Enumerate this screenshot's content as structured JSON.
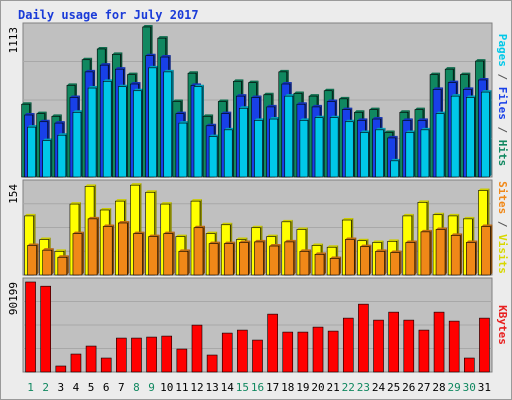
{
  "chart_data": {
    "type": "bar",
    "title": "Daily usage for July 2017",
    "categories": [
      "1",
      "2",
      "3",
      "4",
      "5",
      "6",
      "7",
      "8",
      "9",
      "10",
      "11",
      "12",
      "13",
      "14",
      "15",
      "16",
      "17",
      "18",
      "19",
      "20",
      "21",
      "22",
      "23",
      "24",
      "25",
      "26",
      "27",
      "28",
      "29",
      "30",
      "31"
    ],
    "weekend_categories": [
      "1",
      "2",
      "8",
      "9",
      "15",
      "16",
      "22",
      "23",
      "29",
      "30"
    ],
    "panels": [
      {
        "id": "hits-files-pages",
        "max_label": "1113",
        "ylim": [
          0,
          1113
        ],
        "axis_labels": [
          {
            "text": "Pages",
            "color": "#00c8e8"
          },
          {
            "text": " / ",
            "color": "#555555"
          },
          {
            "text": "Files",
            "color": "#1840e8"
          },
          {
            "text": " / ",
            "color": "#555555"
          },
          {
            "text": "Hits",
            "color": "#108860"
          }
        ],
        "series": [
          {
            "name": "Hits",
            "color": "#108860",
            "values": [
              540,
              470,
              450,
              680,
              870,
              950,
              910,
              760,
              1113,
              1030,
              560,
              770,
              450,
              560,
              710,
              700,
              610,
              780,
              620,
              600,
              640,
              580,
              480,
              500,
              330,
              480,
              500,
              760,
              800,
              760,
              860
            ]
          },
          {
            "name": "Files",
            "color": "#1840e8",
            "values": [
              460,
              410,
              400,
              590,
              780,
              830,
              800,
              690,
              900,
              890,
              470,
              680,
              380,
              470,
              600,
              590,
              520,
              690,
              540,
              520,
              560,
              500,
              420,
              430,
              290,
              420,
              420,
              650,
              700,
              650,
              720
            ]
          },
          {
            "name": "Pages",
            "color": "#00c8e8",
            "values": [
              370,
              270,
              310,
              480,
              660,
              710,
              670,
              640,
              810,
              780,
              400,
              670,
              300,
              350,
              510,
              420,
              430,
              600,
              420,
              440,
              440,
              410,
              330,
              350,
              120,
              330,
              350,
              470,
              600,
              590,
              630
            ]
          }
        ]
      },
      {
        "id": "visits-sites",
        "max_label": "154",
        "ylim": [
          0,
          154
        ],
        "axis_labels": [
          {
            "text": "Sites",
            "color": "#f08818"
          },
          {
            "text": " / ",
            "color": "#555555"
          },
          {
            "text": "Visits",
            "color": "#d8d800"
          }
        ],
        "series": [
          {
            "name": "Visits",
            "color": "#ffff00",
            "values": [
              100,
              60,
              40,
              120,
              150,
              110,
              125,
              152,
              140,
              120,
              65,
              125,
              70,
              85,
              60,
              80,
              65,
              90,
              77,
              50,
              47,
              93,
              58,
              55,
              57,
              100,
              123,
              102,
              100,
              95,
              143
            ]
          },
          {
            "name": "Sites",
            "color": "#f08818",
            "values": [
              50,
              42,
              30,
              70,
              95,
              82,
              88,
              70,
              65,
              70,
              40,
              80,
              53,
              53,
              55,
              56,
              49,
              56,
              40,
              35,
              28,
              60,
              48,
              40,
              38,
              55,
              73,
              77,
              67,
              55,
              82
            ]
          }
        ]
      },
      {
        "id": "kbytes",
        "max_label": "90199",
        "ylim": [
          0,
          90199
        ],
        "axis_labels": [
          {
            "text": "KBytes",
            "color": "#e82020"
          }
        ],
        "series": [
          {
            "name": "KBytes",
            "color": "#ff0000",
            "values": [
              90199,
              86000,
              6000,
              18000,
              26000,
              14000,
              34000,
              34000,
              35000,
              36000,
              23000,
              47000,
              17000,
              39000,
              42000,
              32000,
              58000,
              40000,
              40000,
              45000,
              41000,
              54000,
              68000,
              52000,
              60000,
              52000,
              42000,
              60000,
              51000,
              14000,
              54000
            ]
          }
        ]
      }
    ]
  }
}
